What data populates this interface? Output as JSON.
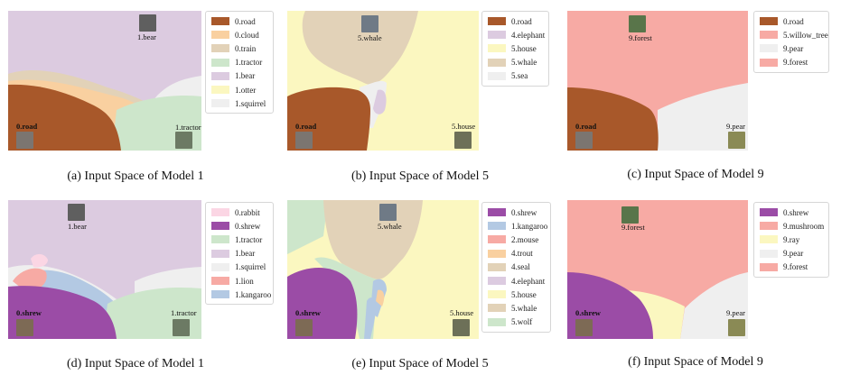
{
  "panels": [
    {
      "caption": "(a) Input Space of Model 1",
      "legend": [
        {
          "label": "0.road",
          "color": "#a8582a"
        },
        {
          "label": "0.cloud",
          "color": "#f9d0a0"
        },
        {
          "label": "0.train",
          "color": "#e2d2b8"
        },
        {
          "label": "1.tractor",
          "color": "#cde6cb"
        },
        {
          "label": "1.bear",
          "color": "#dccbe0"
        },
        {
          "label": "1.otter",
          "color": "#fbf7c0"
        },
        {
          "label": "1.squirrel",
          "color": "#efefef"
        }
      ],
      "points": [
        {
          "label": "1.bear",
          "bold": false
        },
        {
          "label": "0.road",
          "bold": true
        },
        {
          "label": "1.tractor",
          "bold": false
        }
      ]
    },
    {
      "caption": "(b) Input Space of Model 5",
      "legend": [
        {
          "label": "0.road",
          "color": "#a8582a"
        },
        {
          "label": "4.elephant",
          "color": "#dccbe0"
        },
        {
          "label": "5.house",
          "color": "#fbf7c0"
        },
        {
          "label": "5.whale",
          "color": "#e2d2b8"
        },
        {
          "label": "5.sea",
          "color": "#efefef"
        }
      ],
      "points": [
        {
          "label": "5.whale",
          "bold": false
        },
        {
          "label": "0.road",
          "bold": true
        },
        {
          "label": "5.house",
          "bold": false
        }
      ]
    },
    {
      "caption": "(c) Input Space of Model 9",
      "legend": [
        {
          "label": "0.road",
          "color": "#a8582a"
        },
        {
          "label": "5.willow_tree",
          "color": "#f7aaa4"
        },
        {
          "label": "9.pear",
          "color": "#efefef"
        },
        {
          "label": "9.forest",
          "color": "#f7aaa4"
        }
      ],
      "points": [
        {
          "label": "9.forest",
          "bold": false
        },
        {
          "label": "0.road",
          "bold": true
        },
        {
          "label": "9.pear",
          "bold": false
        }
      ]
    },
    {
      "caption": "(d) Input Space of Model 1",
      "legend": [
        {
          "label": "0.rabbit",
          "color": "#fbd6e4"
        },
        {
          "label": "0.shrew",
          "color": "#9b4ca6"
        },
        {
          "label": "1.tractor",
          "color": "#cde6cb"
        },
        {
          "label": "1.bear",
          "color": "#dccbe0"
        },
        {
          "label": "1.squirrel",
          "color": "#efefef"
        },
        {
          "label": "1.lion",
          "color": "#f7aaa4"
        },
        {
          "label": "1.kangaroo",
          "color": "#b3c9e3"
        }
      ],
      "points": [
        {
          "label": "1.bear",
          "bold": false
        },
        {
          "label": "0.shrew",
          "bold": true
        },
        {
          "label": "1.tractor",
          "bold": false
        }
      ]
    },
    {
      "caption": "(e) Input Space of Model 5",
      "legend": [
        {
          "label": "0.shrew",
          "color": "#9b4ca6"
        },
        {
          "label": "1.kangaroo",
          "color": "#b3c9e3"
        },
        {
          "label": "2.mouse",
          "color": "#f7aaa4"
        },
        {
          "label": "4.trout",
          "color": "#f9d0a0"
        },
        {
          "label": "4.seal",
          "color": "#e2d2b8"
        },
        {
          "label": "4.elephant",
          "color": "#dccbe0"
        },
        {
          "label": "5.house",
          "color": "#fbf7c0"
        },
        {
          "label": "5.whale",
          "color": "#e2d2b8"
        },
        {
          "label": "5.wolf",
          "color": "#cde6cb"
        }
      ],
      "points": [
        {
          "label": "5.whale",
          "bold": false
        },
        {
          "label": "0.shrew",
          "bold": true
        },
        {
          "label": "5.house",
          "bold": false
        }
      ]
    },
    {
      "caption": "(f) Input Space of Model 9",
      "legend": [
        {
          "label": "0.shrew",
          "color": "#9b4ca6"
        },
        {
          "label": "9.mushroom",
          "color": "#f7aaa4"
        },
        {
          "label": "9.ray",
          "color": "#fbf7c0"
        },
        {
          "label": "9.pear",
          "color": "#efefef"
        },
        {
          "label": "9.forest",
          "color": "#f7aaa4"
        }
      ],
      "points": [
        {
          "label": "9.forest",
          "bold": false
        },
        {
          "label": "0.shrew",
          "bold": true
        },
        {
          "label": "9.pear",
          "bold": false
        }
      ]
    }
  ]
}
